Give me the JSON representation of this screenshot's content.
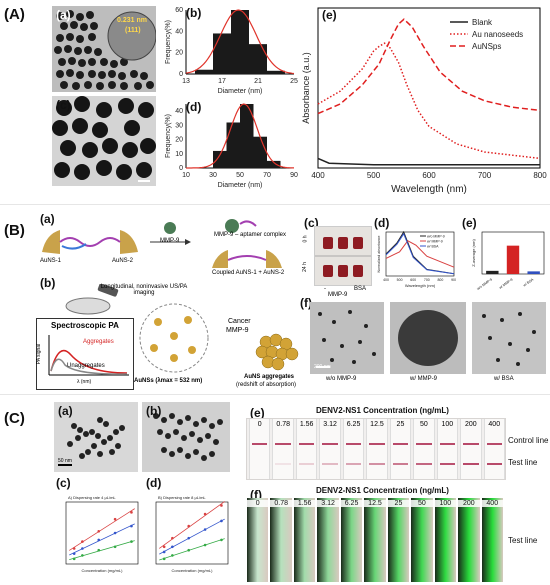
{
  "sectionA": {
    "label": "(A)",
    "panels": {
      "a": "(a)",
      "b": "(b)",
      "c": "(c)",
      "d": "(d)",
      "e": "(e)"
    },
    "inset_annotation": [
      "0.231 nm",
      "(111)"
    ],
    "colors": {
      "bar": "#1a1a1a",
      "fit": "#e0342b"
    }
  },
  "sectionB": {
    "label": "(B)",
    "panels": {
      "a": "(a)",
      "b": "(b)",
      "c": "(c)",
      "d": "(d)",
      "e": "(e)",
      "f": "(f)"
    },
    "scheme": {
      "ausn1": "AuNS-1",
      "ausn2": "AuNS-2",
      "enzyme": "MMP-9",
      "complex": "MMP-9 – aptamer complex",
      "coupled": "Coupled AuNS-1 + AuNS-2",
      "imaging": "Longitudinal, noninvasive US/PA imaging",
      "spec_title": "Spectroscopic PA",
      "spec_agg": "Aggregates",
      "spec_unagg": "Unaggregates",
      "pa_axis": "PA signal",
      "lambda_axis": "λ (nm)",
      "ausns": "AuNSs (λmax = 532 nm)",
      "cancer": "Cancer",
      "cancer2": "MMP-9",
      "agg_label": "AuNS aggregates",
      "agg_label2": "(redshift of absorption)"
    },
    "vials": {
      "t0": "0 h",
      "t24": "24 h",
      "minus": "-",
      "mmp": "MMP-9",
      "bsa": "BSA"
    },
    "panel_d": {
      "legend": [
        "w/o MMP-9",
        "w/ MMP-9",
        "w/ BSA"
      ],
      "ylabel": "Normalized absorbance",
      "xlabel": "Wavelength (nm)",
      "ticks": [
        "400",
        "500",
        "600",
        "700",
        "800",
        "900"
      ]
    },
    "panel_e": {
      "ylabel": "Z-average (nm)"
    },
    "tem_captions": [
      "w/o MMP-9",
      "w/ MMP-9",
      "w/ BSA"
    ],
    "scale_bar": "200 nm"
  },
  "sectionC": {
    "label": "(C)",
    "panels": {
      "a": "(a)",
      "b": "(b)",
      "c": "(c)",
      "d": "(d)",
      "e": "(e)",
      "f": "(f)"
    },
    "scale_bar": "50 nm",
    "strip_title": "DENV2-NS1 Concentration (ng/mL)",
    "concentrations": [
      "0",
      "0.78",
      "1.56",
      "3.12",
      "6.25",
      "12.5",
      "25",
      "50",
      "100",
      "200",
      "400"
    ],
    "control_line": "Control line",
    "test_line": "Test line",
    "test_line_f": "Test line"
  },
  "chart_data": [
    {
      "id": "A-b",
      "type": "bar",
      "categories": [
        15,
        17,
        19,
        21,
        23
      ],
      "values": [
        4,
        38,
        60,
        28,
        3
      ],
      "xlabel": "Diameter (nm)",
      "ylabel": "Frequency(%)",
      "xticks": [
        "13",
        "17",
        "21",
        "25"
      ],
      "yticks": [
        "0",
        "20",
        "40",
        "60"
      ],
      "ylim": [
        0,
        60
      ],
      "fit": "gaussian"
    },
    {
      "id": "A-d",
      "type": "bar",
      "categories": [
        35,
        45,
        55,
        65,
        75
      ],
      "values": [
        12,
        32,
        45,
        22,
        5
      ],
      "xlabel": "Diameter (nm)",
      "ylabel": "Frequency(%)",
      "xticks": [
        "10",
        "30",
        "50",
        "70",
        "90"
      ],
      "yticks": [
        "0",
        "10",
        "20",
        "30",
        "40"
      ],
      "ylim": [
        0,
        45
      ],
      "fit": "gaussian"
    },
    {
      "id": "A-e",
      "type": "line",
      "xlabel": "Wavelength (nm)",
      "ylabel": "Absorbance (a.u.)",
      "xticks": [
        "400",
        "500",
        "600",
        "700",
        "800"
      ],
      "xlim": [
        400,
        800
      ],
      "legend": "top-right",
      "series": [
        {
          "name": "Blank",
          "color": "#222222",
          "style": "solid",
          "x": [
            400,
            420,
            500,
            600,
            700,
            800
          ],
          "y": [
            0.06,
            0.03,
            0.02,
            0.02,
            0.02,
            0.02
          ]
        },
        {
          "name": "Au nanoseeds",
          "color": "#e01f1f",
          "style": "dotted",
          "x": [
            400,
            440,
            480,
            500,
            510,
            520,
            530,
            545,
            560,
            580,
            600,
            650,
            700,
            800
          ],
          "y": [
            0.4,
            0.48,
            0.62,
            0.73,
            0.76,
            0.78,
            0.75,
            0.66,
            0.52,
            0.36,
            0.26,
            0.15,
            0.1,
            0.06
          ]
        },
        {
          "name": "AuNSps",
          "color": "#e01f1f",
          "style": "dashed",
          "x": [
            400,
            440,
            480,
            510,
            530,
            545,
            555,
            570,
            590,
            620,
            660,
            700,
            750,
            800
          ],
          "y": [
            0.34,
            0.4,
            0.52,
            0.65,
            0.8,
            0.9,
            0.93,
            0.88,
            0.76,
            0.6,
            0.48,
            0.42,
            0.38,
            0.36
          ]
        }
      ]
    },
    {
      "id": "B-d",
      "type": "line",
      "xlabel": "Wavelength (nm)",
      "ylabel": "Normalized absorbance",
      "series": [
        {
          "name": "w/o MMP-9",
          "color": "#222222",
          "x": [
            400,
            480,
            530,
            600,
            700,
            900
          ],
          "y": [
            0.5,
            0.75,
            1.0,
            0.45,
            0.15,
            0.05
          ]
        },
        {
          "name": "w/ MMP-9",
          "color": "#d94141",
          "x": [
            400,
            500,
            560,
            620,
            700,
            900
          ],
          "y": [
            0.4,
            0.55,
            0.8,
            0.7,
            0.45,
            0.2
          ]
        },
        {
          "name": "w/ BSA",
          "color": "#3355cc",
          "x": [
            400,
            480,
            530,
            600,
            700,
            900
          ],
          "y": [
            0.48,
            0.72,
            0.96,
            0.42,
            0.14,
            0.05
          ]
        }
      ]
    },
    {
      "id": "B-e",
      "type": "bar",
      "categories": [
        "w/o MMP-9",
        "w/ MMP-9",
        "w/ BSA"
      ],
      "values": [
        30,
        270,
        25
      ],
      "colors": [
        "#222222",
        "#d42323",
        "#2f4fbf"
      ],
      "ylabel": "Z-average (nm)",
      "ylim": [
        0,
        400
      ]
    },
    {
      "id": "C-c",
      "type": "scatter",
      "title": "A) Dispersing rate 4 μL/mL",
      "xlabel": "Concentration (mg/mL)",
      "series": [
        {
          "color": "#d94141",
          "x": [
            0.25,
            0.5,
            1.0,
            1.5,
            2.0
          ],
          "y": [
            0.9,
            1.3,
            1.9,
            2.6,
            3.0
          ]
        },
        {
          "color": "#3355cc",
          "x": [
            0.25,
            0.5,
            1.0,
            1.5,
            2.0
          ],
          "y": [
            0.6,
            0.9,
            1.4,
            1.8,
            2.2
          ]
        },
        {
          "color": "#33aa44",
          "x": [
            0.25,
            0.5,
            1.0,
            1.5,
            2.0
          ],
          "y": [
            0.3,
            0.5,
            0.8,
            1.0,
            1.3
          ]
        }
      ]
    },
    {
      "id": "C-d",
      "type": "scatter",
      "title": "B) Dispersing rate 8 μL/mL",
      "xlabel": "Concentration (mg/mL)",
      "series": [
        {
          "color": "#d94141",
          "x": [
            0.25,
            0.5,
            1.0,
            1.5,
            2.0
          ],
          "y": [
            1.0,
            1.5,
            2.2,
            2.9,
            3.4
          ]
        },
        {
          "color": "#3355cc",
          "x": [
            0.25,
            0.5,
            1.0,
            1.5,
            2.0
          ],
          "y": [
            0.7,
            1.0,
            1.5,
            2.0,
            2.5
          ]
        },
        {
          "color": "#33aa44",
          "x": [
            0.25,
            0.5,
            1.0,
            1.5,
            2.0
          ],
          "y": [
            0.3,
            0.5,
            0.8,
            1.1,
            1.4
          ]
        }
      ]
    }
  ]
}
